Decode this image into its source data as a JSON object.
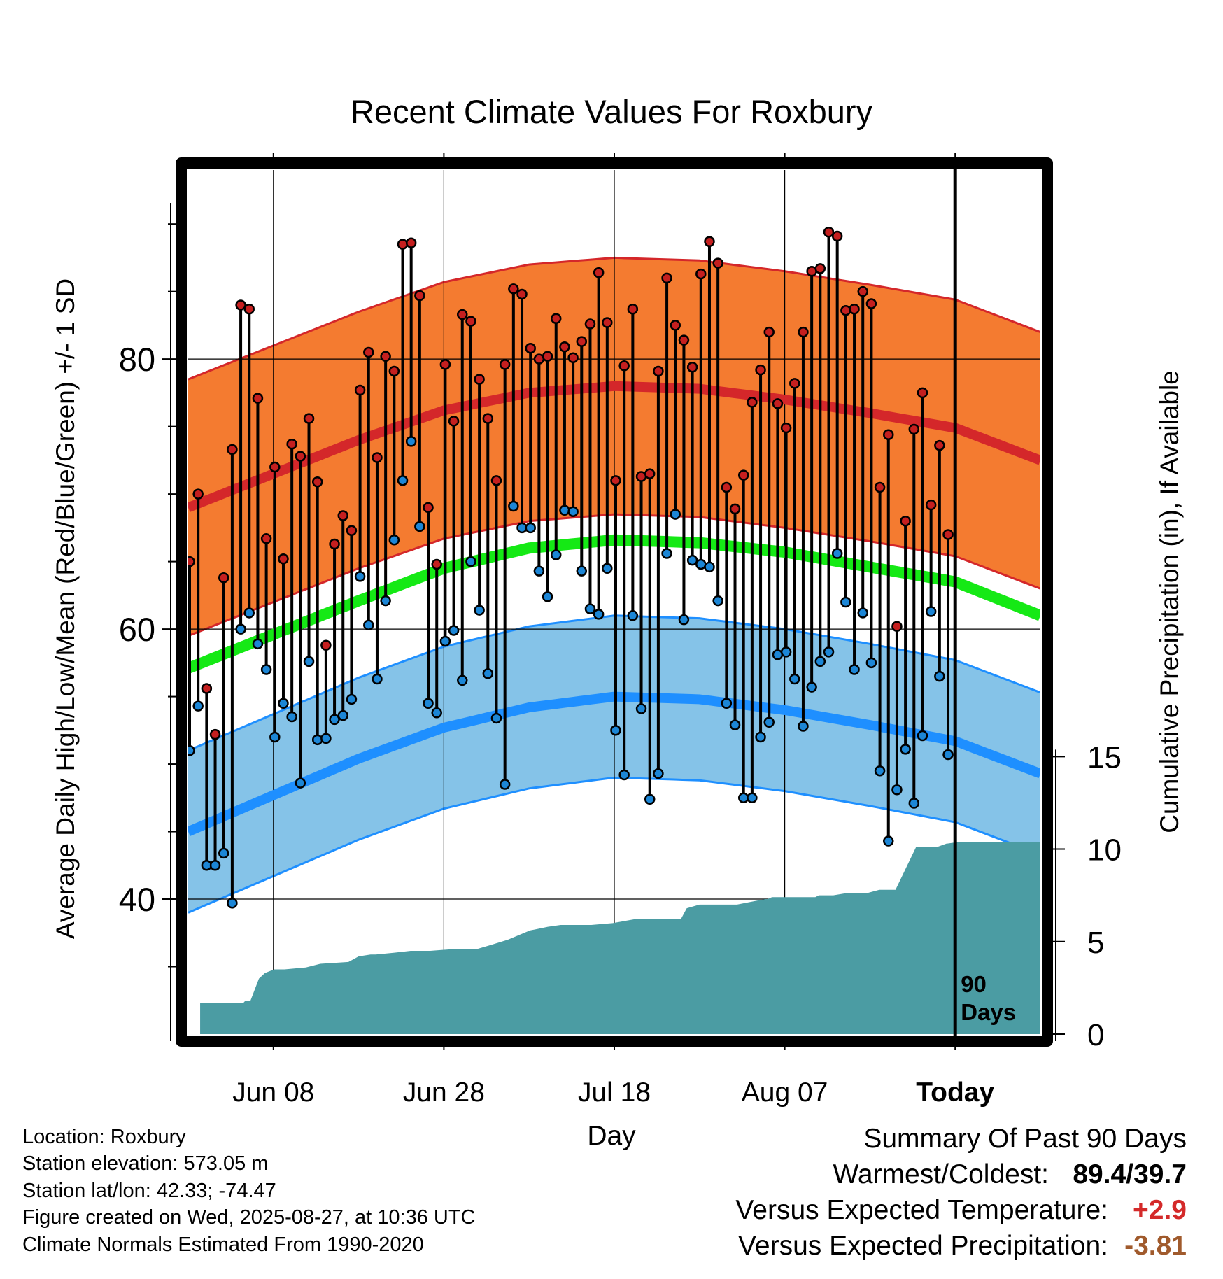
{
  "chart_data": {
    "type": "line",
    "title": "Recent Climate Values For Roxbury",
    "xlabel": "Day",
    "ylabel": "Average Daily High/Low/Mean (Red/Blue/Green) +/- 1 SD",
    "y2label": "Cumulative Precipitation (in), If Available",
    "x_ticks": [
      "Jun 08",
      "Jun 28",
      "Jul 18",
      "Aug 07",
      "Today"
    ],
    "x_tick_days": [
      10,
      30,
      50,
      70,
      90
    ],
    "x_range_days": [
      0,
      100
    ],
    "ylim": [
      30,
      94
    ],
    "y_ticks": [
      40,
      60,
      80
    ],
    "y2lim": [
      0,
      46.7
    ],
    "y2_ticks": [
      0,
      5,
      10,
      15
    ],
    "grid": true,
    "today_marker": "90\nDays",
    "today_label_line1": "90",
    "today_label_line2": "Days",
    "normals": {
      "days": [
        0,
        10,
        20,
        30,
        40,
        50,
        60,
        70,
        80,
        90,
        100
      ],
      "high_mean": [
        69.0,
        71.5,
        74.0,
        76.2,
        77.5,
        78.0,
        77.8,
        77.0,
        76.0,
        74.9,
        72.5
      ],
      "high_sd": 9.5,
      "low_mean": [
        45.0,
        47.7,
        50.4,
        52.7,
        54.2,
        55.0,
        54.8,
        54.0,
        52.9,
        51.7,
        49.3
      ],
      "low_sd": 6.0,
      "mean": [
        57.1,
        59.6,
        62.1,
        64.5,
        66.0,
        66.6,
        66.4,
        65.7,
        64.6,
        63.5,
        61.0
      ]
    },
    "series": [
      {
        "name": "Red",
        "values": [
          65.0,
          70.0,
          55.6,
          52.2,
          63.8,
          73.3,
          84.0,
          83.7,
          77.1,
          66.7,
          72.0,
          65.2,
          73.7,
          72.8,
          75.6,
          70.9,
          58.8,
          66.3,
          68.4,
          67.3,
          77.7,
          80.5,
          72.7,
          80.2,
          79.1,
          88.5,
          88.6,
          84.7,
          69.0,
          64.8,
          79.6,
          75.4,
          83.3,
          82.8,
          78.5,
          75.6,
          71.0,
          79.6,
          85.2,
          84.8,
          80.8,
          80.0,
          80.2,
          83.0,
          80.9,
          80.1,
          81.3,
          82.6,
          86.4,
          82.7,
          71.0,
          79.5,
          83.7,
          71.3,
          71.5,
          79.1,
          86.0,
          82.5,
          81.4,
          79.4,
          86.3,
          88.7,
          87.1,
          70.5,
          68.9,
          71.4,
          76.8,
          79.2,
          82.0,
          76.7,
          74.9,
          78.2,
          82.0,
          86.5,
          86.7,
          89.4,
          89.1,
          83.6,
          83.7,
          85.0,
          84.1,
          70.5,
          74.4,
          60.2,
          68.0,
          74.8,
          77.5,
          69.2,
          73.6,
          67.0
        ]
      },
      {
        "name": "Blue",
        "values": [
          51.0,
          54.3,
          42.5,
          42.5,
          43.4,
          39.7,
          60.0,
          61.2,
          58.9,
          57.0,
          52.0,
          54.5,
          53.5,
          48.6,
          57.6,
          51.8,
          51.9,
          53.3,
          53.6,
          54.8,
          63.9,
          60.3,
          56.3,
          62.1,
          66.6,
          71.0,
          73.9,
          67.6,
          54.5,
          53.8,
          59.1,
          59.9,
          56.2,
          65.0,
          61.4,
          56.7,
          53.4,
          48.5,
          69.1,
          67.5,
          67.5,
          64.3,
          62.4,
          65.5,
          68.8,
          68.7,
          64.3,
          61.5,
          61.1,
          64.5,
          52.5,
          49.2,
          61.0,
          54.1,
          47.4,
          49.3,
          65.6,
          68.5,
          60.7,
          65.1,
          64.8,
          64.6,
          62.1,
          54.5,
          52.9,
          47.5,
          47.5,
          52.0,
          53.1,
          58.1,
          58.3,
          56.3,
          52.8,
          55.7,
          57.6,
          58.3,
          65.6,
          62.0,
          57.0,
          61.2,
          57.5,
          49.5,
          44.3,
          48.1,
          51.1,
          47.1,
          52.1,
          61.3,
          56.5,
          50.7
        ]
      }
    ],
    "precip_days": [
      1.4,
      1.4,
      5.3,
      6.5,
      6.7,
      7.3,
      8.3,
      9.0,
      10.1,
      11.3,
      13.8,
      15.5,
      18.8,
      20.0,
      21.4,
      22.0,
      24.2,
      26.1,
      28.4,
      31.3,
      33.9,
      35.4,
      37.5,
      40.1,
      42.2,
      43.7,
      46.4,
      47.3,
      49.8,
      52.3,
      57.8,
      58.5,
      60.0,
      64.4,
      67.7,
      68.0,
      68.5,
      73.6,
      74.0,
      75.7,
      77.0,
      79.5,
      81.1,
      83.0,
      85.4,
      87.8,
      89.0,
      89.1,
      90.6,
      100.0
    ],
    "precip_values": [
      0.0,
      1.7,
      1.7,
      1.7,
      1.8,
      1.8,
      3.0,
      3.3,
      3.5,
      3.5,
      3.6,
      3.8,
      3.9,
      4.2,
      4.3,
      4.3,
      4.4,
      4.5,
      4.5,
      4.6,
      4.6,
      4.8,
      5.1,
      5.6,
      5.8,
      5.9,
      5.9,
      5.9,
      6.0,
      6.2,
      6.2,
      6.8,
      7.0,
      7.0,
      7.3,
      7.3,
      7.4,
      7.4,
      7.5,
      7.5,
      7.6,
      7.6,
      7.8,
      7.8,
      10.1,
      10.1,
      10.3,
      10.3,
      10.4,
      10.4
    ],
    "colors": {
      "high_band": "#f47b30",
      "high_line": "#d4272a",
      "low_band": "#85c3e8",
      "low_line": "#1e8fff",
      "mean_line": "#15e915",
      "precip_fill": "#4b9ca3",
      "high_dot": "#c51f1f",
      "low_dot": "#1c86d6"
    }
  },
  "info": {
    "location": "Location: Roxbury",
    "elevation": "Station elevation: 573.05 m",
    "latlon": "Station lat/lon: 42.33; -74.47",
    "created": "Figure created on Wed, 2025-08-27, at 10:36 UTC",
    "normals": "Climate Normals Estimated From 1990-2020"
  },
  "summary": {
    "title": "Summary Of Past 90 Days",
    "warm_cold_label": "Warmest/Coldest:",
    "warm_cold_value": "89.4/39.7",
    "temp_label": "Versus Expected Temperature:",
    "temp_value": "+2.9",
    "temp_color": "#d42a2a",
    "precip_label": "Versus Expected Precipitation:",
    "precip_value": "-3.81",
    "precip_color": "#a05a2c"
  }
}
